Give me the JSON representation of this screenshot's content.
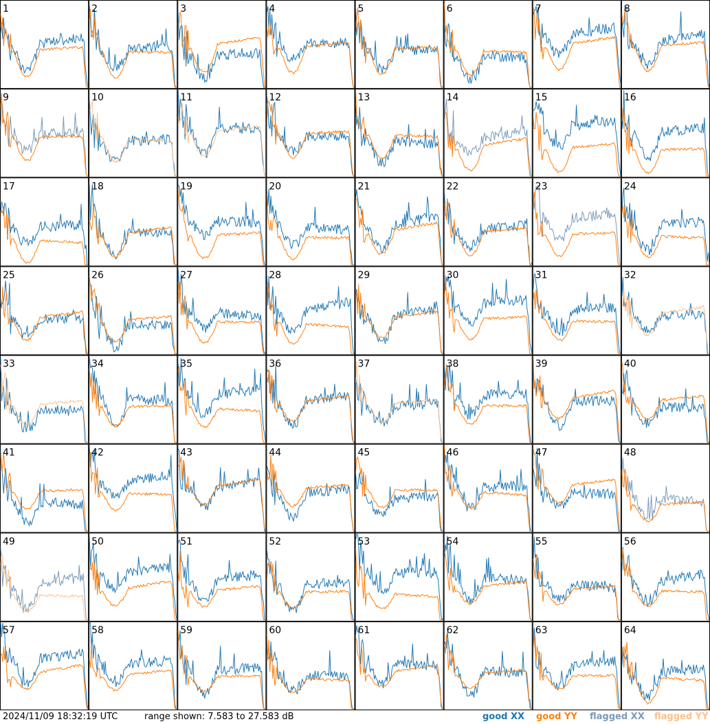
{
  "chart_data": {
    "type": "line",
    "layout": "8x8 grid of small-multiple spectra, one panel per antenna tile",
    "panels": [
      "1",
      "2",
      "3",
      "4",
      "5",
      "6",
      "7",
      "8",
      "9",
      "10",
      "11",
      "12",
      "13",
      "14",
      "15",
      "16",
      "17",
      "18",
      "19",
      "20",
      "21",
      "22",
      "23",
      "24",
      "25",
      "26",
      "27",
      "28",
      "29",
      "30",
      "31",
      "32",
      "33",
      "34",
      "35",
      "36",
      "37",
      "38",
      "39",
      "40",
      "41",
      "42",
      "43",
      "44",
      "45",
      "46",
      "47",
      "48",
      "49",
      "50",
      "51",
      "52",
      "53",
      "54",
      "55",
      "56",
      "57",
      "58",
      "59",
      "60",
      "61",
      "62",
      "63",
      "64"
    ],
    "y_range_db": [
      7.583,
      27.583
    ],
    "series": [
      {
        "name": "good XX",
        "color": "#1f77b4"
      },
      {
        "name": "good YY",
        "color": "#ff7f0e"
      },
      {
        "name": "flagged XX",
        "color": "#7a9ab8"
      },
      {
        "name": "flagged YY",
        "color": "#ffc08a"
      }
    ],
    "flagged_panels_xx": [
      "9",
      "14",
      "23",
      "48",
      "49"
    ],
    "flagged_panels_yy": [
      "10",
      "11",
      "32",
      "33",
      "37",
      "49"
    ],
    "axes_visible": false,
    "grid": false,
    "legend": "bottom-right"
  },
  "footer": {
    "timestamp": "2024/11/09 18:32:19 UTC",
    "range_text": "range shown: 7.583 to 27.583 dB"
  },
  "legend": {
    "good_xx": "good XX",
    "good_yy": "good YY",
    "flagged_xx": "flagged XX",
    "flagged_yy": "flagged YY"
  },
  "colors": {
    "good_xx": "#1f77b4",
    "good_yy": "#ff7f0e",
    "flagged_xx": "#7a9ab8",
    "flagged_yy": "#ffc08a"
  }
}
